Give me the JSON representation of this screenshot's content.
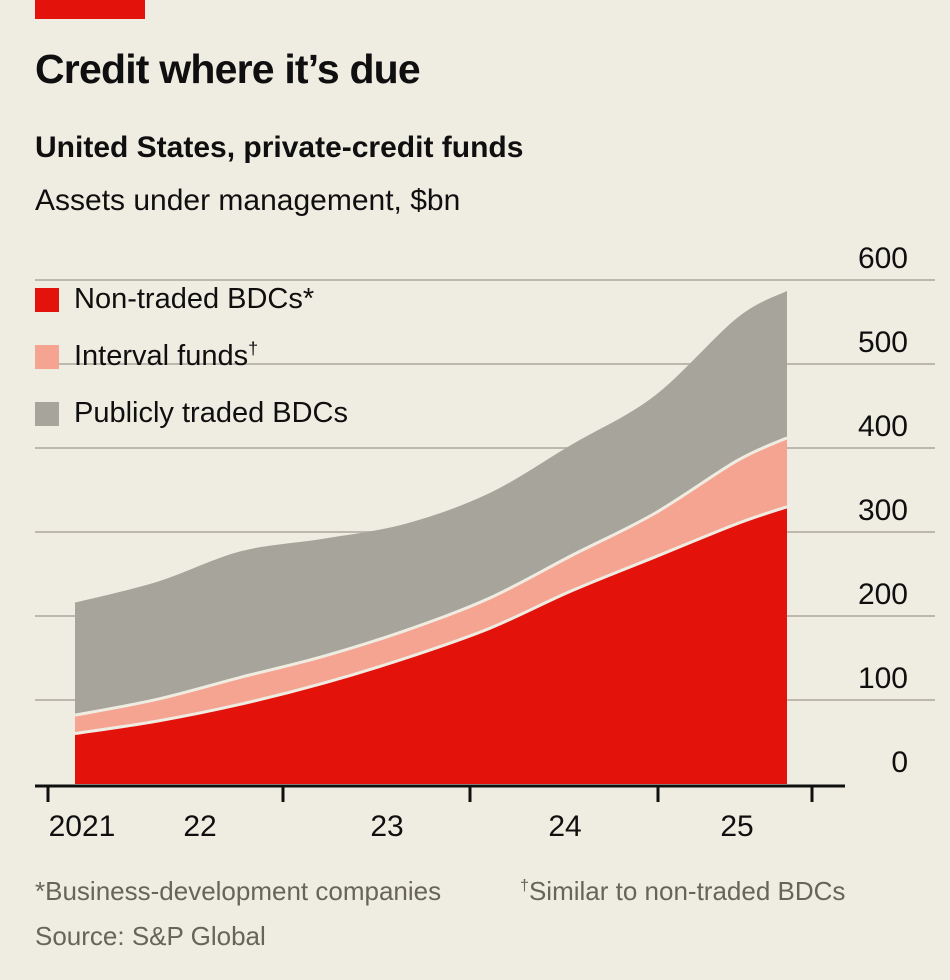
{
  "theme": {
    "background": "#efece2",
    "brand_red": "#e3120b",
    "grid": "#bcb8ad",
    "axis": "#0f0f0f",
    "text": "#0f0f0f",
    "muted": "#67645a"
  },
  "chart_data": {
    "type": "area",
    "stacked": true,
    "title": "Credit where it’s due",
    "subtitle": "United States, private-credit funds",
    "unit_label": "Assets under management, $bn",
    "x": [
      2021,
      2021.5,
      2022,
      2022.5,
      2023,
      2023.5,
      2024,
      2024.5,
      2025,
      2025.3
    ],
    "series": [
      {
        "name": "Non-traded BDCs",
        "color": "#e3120b",
        "values": [
          60,
          75,
          95,
          120,
          150,
          185,
          230,
          270,
          310,
          330
        ]
      },
      {
        "name": "Interval funds",
        "color": "#f6a492",
        "values": [
          22,
          26,
          32,
          32,
          33,
          36,
          42,
          52,
          75,
          82
        ]
      },
      {
        "name": "Publicly traded BDCs",
        "color": "#a7a59b",
        "values": [
          134,
          140,
          150,
          140,
          127,
          125,
          132,
          140,
          170,
          175
        ]
      }
    ],
    "xlim": [
      2021,
      2025.3
    ],
    "ylim": [
      0,
      600
    ],
    "yticks": [
      0,
      100,
      200,
      300,
      400,
      500,
      600
    ],
    "xtick_labels": [
      "2021",
      "22",
      "23",
      "24",
      "25"
    ],
    "grid": true,
    "legend_position": "top-left",
    "y_axis_side": "right"
  },
  "legend": [
    {
      "label": "Non-traded BDCs*",
      "color": "#e3120b"
    },
    {
      "label": "Interval funds",
      "marker": "†",
      "color": "#f6a492"
    },
    {
      "label": "Publicly traded BDCs",
      "color": "#a7a59b"
    }
  ],
  "footnotes": {
    "note1": "*Business-development companies",
    "note2_marker": "†",
    "note2": "Similar to non-traded BDCs"
  },
  "source": "Source: S&P Global"
}
